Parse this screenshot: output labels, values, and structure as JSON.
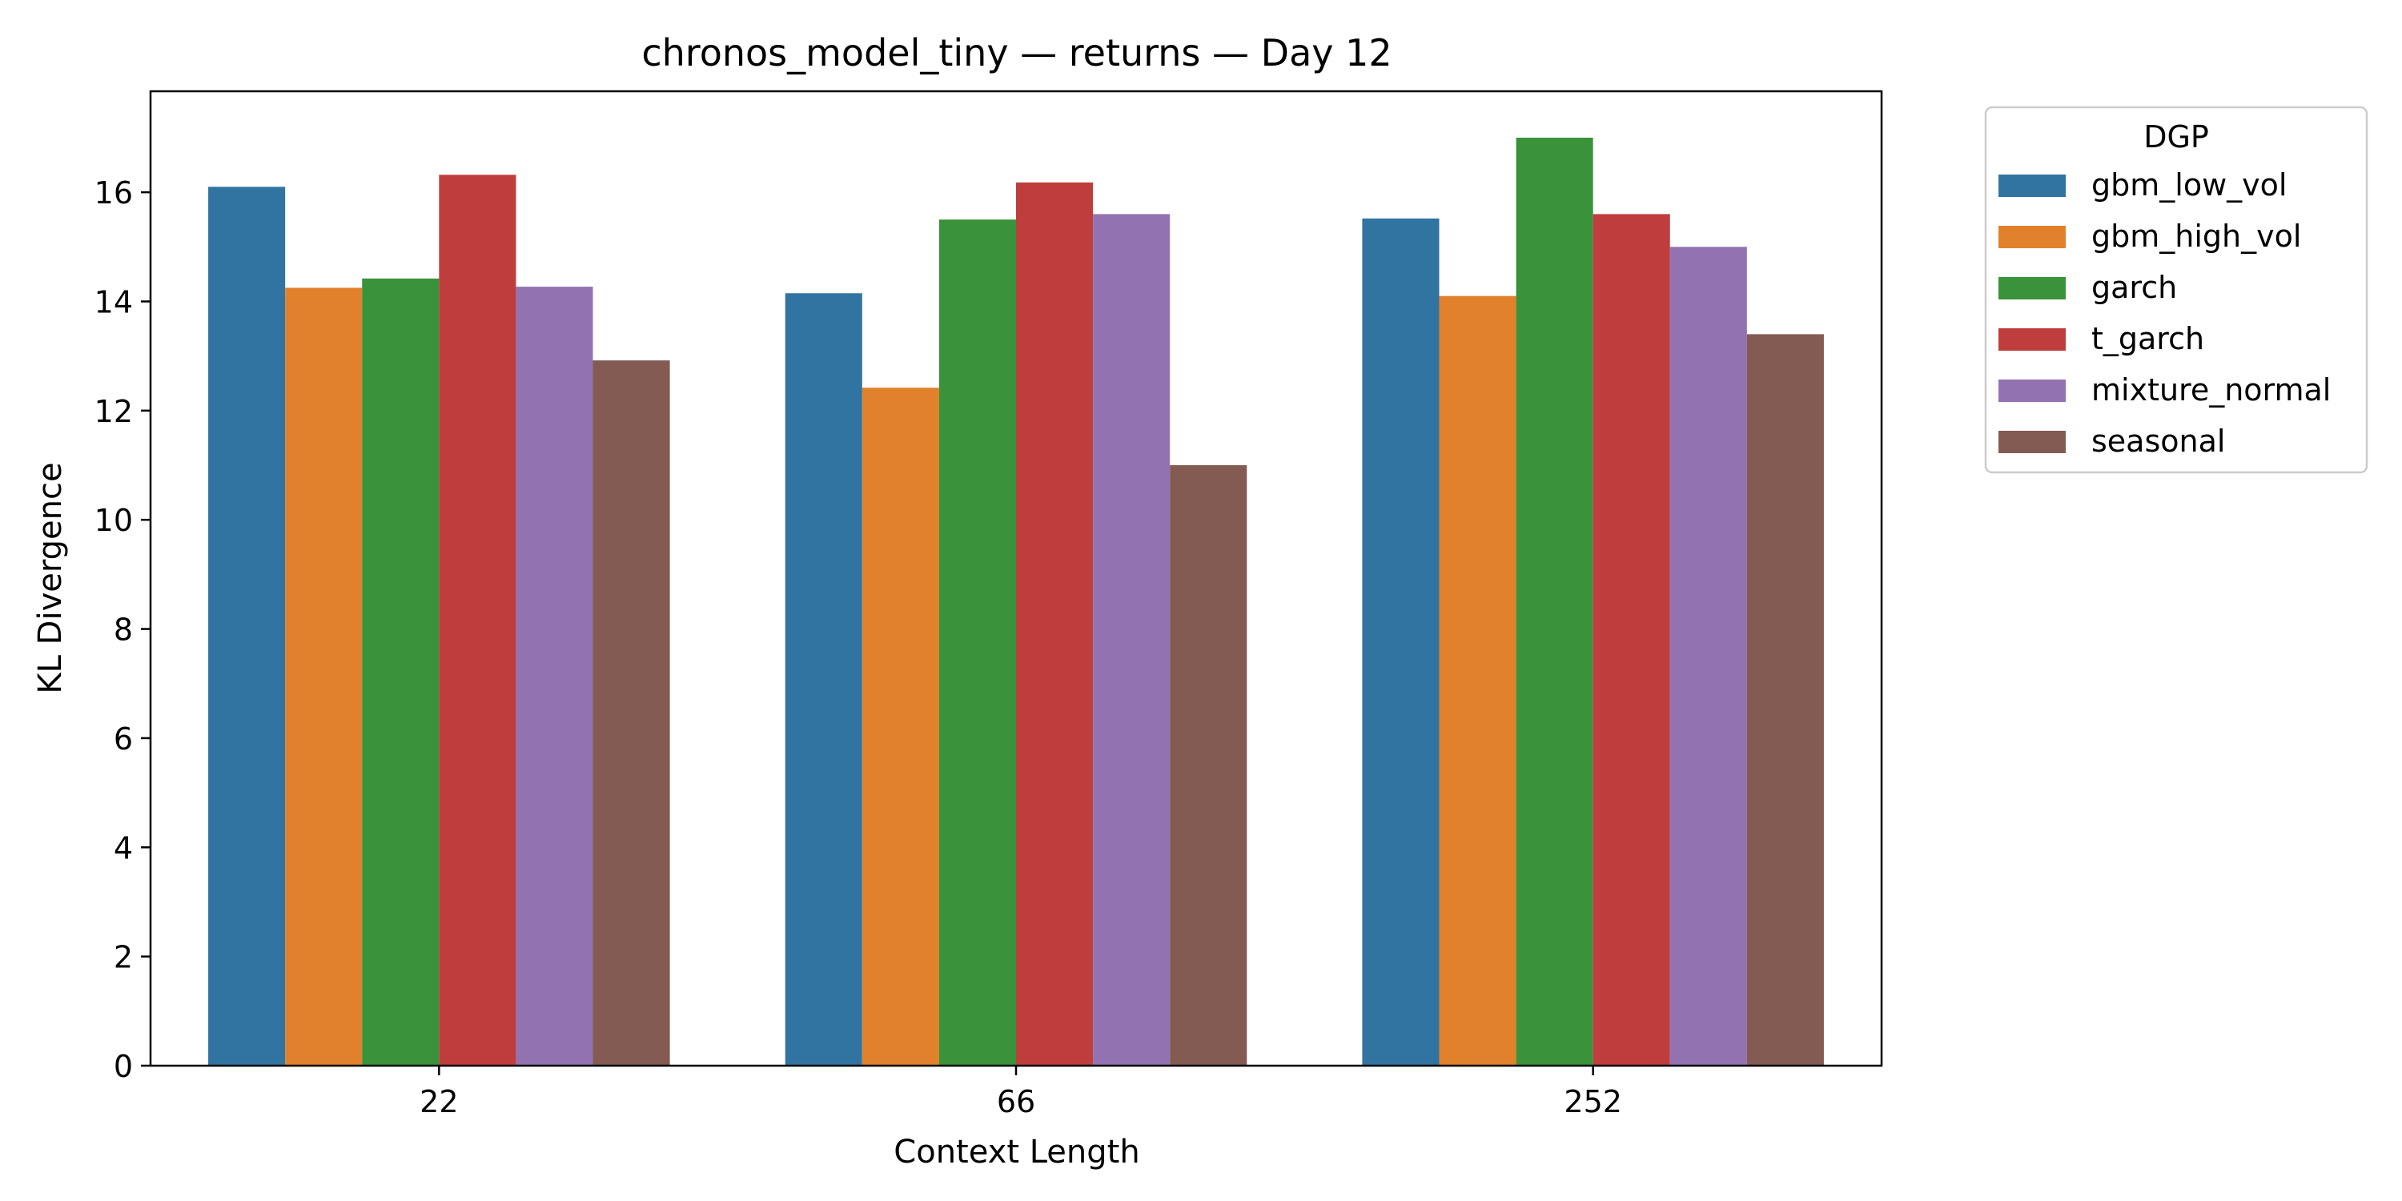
{
  "chart_data": {
    "type": "bar",
    "title": "chronos_model_tiny — returns — Day 12",
    "xlabel": "Context Length",
    "ylabel": "KL Divergence",
    "categories": [
      "22",
      "66",
      "252"
    ],
    "ylim": [
      0,
      17.85
    ],
    "yticks": [
      0,
      2,
      4,
      6,
      8,
      10,
      12,
      14,
      16
    ],
    "grid": false,
    "legend": {
      "title": "DGP",
      "placement": "outside-top-right"
    },
    "series": [
      {
        "name": "gbm_low_vol",
        "color": "#3274a1",
        "values": [
          16.1,
          14.15,
          15.52
        ]
      },
      {
        "name": "gbm_high_vol",
        "color": "#e1812c",
        "values": [
          14.25,
          12.42,
          14.1
        ]
      },
      {
        "name": "garch",
        "color": "#3a923a",
        "values": [
          14.42,
          15.5,
          17.0
        ]
      },
      {
        "name": "t_garch",
        "color": "#c03d3e",
        "values": [
          16.32,
          16.18,
          15.6
        ]
      },
      {
        "name": "mixture_normal",
        "color": "#9372b2",
        "values": [
          14.27,
          15.6,
          15.0
        ]
      },
      {
        "name": "seasonal",
        "color": "#845b53",
        "values": [
          12.92,
          11.0,
          13.4
        ]
      }
    ]
  }
}
